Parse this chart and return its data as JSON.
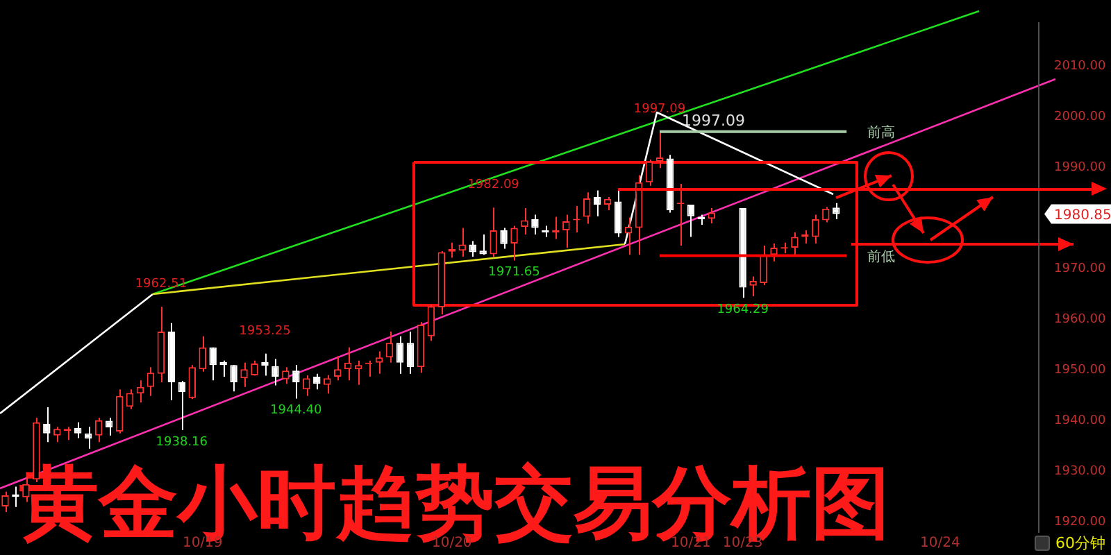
{
  "chart_data": {
    "type": "candlestick",
    "title": "黄金小时趋势交易分析图",
    "categories": [
      null,
      null,
      null,
      null,
      null,
      null,
      null,
      null,
      null,
      null,
      null,
      null,
      null,
      null,
      null,
      null,
      null,
      null,
      null,
      "10/19",
      null,
      null,
      null,
      null,
      null,
      null,
      null,
      null,
      null,
      null,
      null,
      null,
      null,
      null,
      null,
      null,
      null,
      null,
      null,
      null,
      null,
      null,
      null,
      "10/20",
      null,
      null,
      null,
      null,
      null,
      null,
      null,
      null,
      null,
      null,
      null,
      null,
      null,
      null,
      null,
      null,
      null,
      null,
      null,
      null,
      null,
      null,
      "10/21",
      null,
      null,
      null,
      null,
      "10/23",
      null,
      null,
      null,
      null,
      null,
      null,
      null,
      null,
      null,
      null,
      null,
      null,
      null,
      null,
      null,
      null,
      null,
      null,
      "10/24",
      null,
      null,
      null,
      null,
      null,
      null,
      null,
      null,
      null
    ],
    "ohlc": [
      [
        1923.1,
        1926,
        1922,
        1925.3
      ],
      [
        1925.5,
        1927,
        1923,
        1925
      ],
      [
        1924.9,
        1929,
        1924,
        1927.5
      ],
      [
        1928.4,
        1940.6,
        1927.9,
        1939.7
      ],
      [
        1939.4,
        1942.7,
        1935.8,
        1937.5
      ],
      [
        1937.1,
        1938.8,
        1935.8,
        1938.4
      ],
      [
        1938,
        1938.8,
        1936.2,
        1938.4
      ],
      [
        1938.6,
        1939.7,
        1936.6,
        1937.5
      ],
      [
        1937.5,
        1938.8,
        1934.5,
        1936.5
      ],
      [
        1937.1,
        1940.6,
        1935.8,
        1940.1
      ],
      [
        1940,
        1940.6,
        1937.1,
        1938.7
      ],
      [
        1937.9,
        1946.2,
        1937.5,
        1944.9
      ],
      [
        1942.8,
        1946.2,
        1942.3,
        1945.5
      ],
      [
        1945.4,
        1948,
        1943.6,
        1946.7
      ],
      [
        1946.7,
        1950.6,
        1944.9,
        1949.5
      ],
      [
        1949.3,
        1962.51,
        1947.6,
        1957.6
      ],
      [
        1957.6,
        1959.3,
        1944.1,
        1947.6
      ],
      [
        1947.6,
        1947.9,
        1938.16,
        1945.7
      ],
      [
        1944.5,
        1951,
        1944.3,
        1950.6
      ],
      [
        1950.2,
        1956.7,
        1949.7,
        1954.5
      ],
      [
        1954.5,
        1954.5,
        1948,
        1951
      ],
      [
        1951.6,
        1951.9,
        1948.7,
        1951
      ],
      [
        1951,
        1951,
        1945.8,
        1947.6
      ],
      [
        1948.4,
        1951.5,
        1946.7,
        1950.2
      ],
      [
        1949,
        1951.9,
        1948.9,
        1951.3
      ],
      [
        1951.6,
        1953.25,
        1948.9,
        1950.9
      ],
      [
        1950.8,
        1952.2,
        1947,
        1948.7
      ],
      [
        1948.2,
        1950.6,
        1947.3,
        1949.9
      ],
      [
        1949.9,
        1951,
        1944.4,
        1947.6
      ],
      [
        1946.2,
        1949,
        1944.9,
        1948.4
      ],
      [
        1948.7,
        1949.3,
        1946.2,
        1947.3
      ],
      [
        1947.1,
        1949,
        1945.4,
        1948.4
      ],
      [
        1948.7,
        1952.8,
        1948,
        1950.2
      ],
      [
        1950.2,
        1954.5,
        1948,
        1951.5
      ],
      [
        1950.2,
        1951.9,
        1947.1,
        1951
      ],
      [
        1951.2,
        1951.9,
        1948.7,
        1951.5
      ],
      [
        1951.5,
        1953.7,
        1949.3,
        1952.5
      ],
      [
        1952.5,
        1957.6,
        1951.5,
        1955.4
      ],
      [
        1955.4,
        1956.7,
        1949.3,
        1951.5
      ],
      [
        1955.4,
        1957.6,
        1949.3,
        1950.6
      ],
      [
        1950.6,
        1959.5,
        1949.5,
        1959
      ],
      [
        1956.7,
        1963,
        1955.8,
        1962.6
      ],
      [
        1962.4,
        1973.5,
        1961,
        1973.3
      ],
      [
        1973.4,
        1975.2,
        1972.2,
        1973.9
      ],
      [
        1973.6,
        1978.1,
        1972.4,
        1974.8
      ],
      [
        1974.8,
        1975.5,
        1972.4,
        1973.3
      ],
      [
        1973.6,
        1976.8,
        1972.8,
        1972.9
      ],
      [
        1972.9,
        1982.09,
        1972.4,
        1977.6
      ],
      [
        1977.6,
        1978.1,
        1974,
        1974.9
      ],
      [
        1975,
        1978.5,
        1971.65,
        1978.1
      ],
      [
        1978.3,
        1982,
        1976.8,
        1979.6
      ],
      [
        1979.8,
        1980.7,
        1976.8,
        1978.1
      ],
      [
        1977.6,
        1978.5,
        1976.3,
        1977.2
      ],
      [
        1977.2,
        1980.3,
        1975.9,
        1977.6
      ],
      [
        1977.6,
        1980.7,
        1974.2,
        1979.4
      ],
      [
        1979.6,
        1982.4,
        1977.2,
        1979.8
      ],
      [
        1980.3,
        1985.1,
        1978.9,
        1983.9
      ],
      [
        1984.2,
        1985.5,
        1980.4,
        1982.7
      ],
      [
        1982.7,
        1984.2,
        1981.6,
        1983.8
      ],
      [
        1983.3,
        1985.5,
        1976.3,
        1977
      ],
      [
        1977,
        1980.1,
        1972.8,
        1978.3
      ],
      [
        1978.1,
        1988.5,
        1972.8,
        1987.1
      ],
      [
        1987.1,
        1991.6,
        1986.4,
        1991.2
      ],
      [
        1991.2,
        1997.09,
        1989.9,
        1992
      ],
      [
        1991.8,
        1992.5,
        1981.1,
        1981.6
      ],
      [
        1982.8,
        1986.8,
        1974.6,
        1982.9
      ],
      [
        1982.7,
        1982.7,
        1976.3,
        1980.4
      ],
      [
        1980.3,
        1980.7,
        1978.7,
        1979.8
      ],
      [
        1979.9,
        1982,
        1979,
        1981.1
      ],
      null,
      null,
      [
        1982,
        1982,
        1964.29,
        1966.3
      ],
      [
        1966.7,
        1968.5,
        1964.6,
        1967.6
      ],
      [
        1967.2,
        1974.6,
        1966.8,
        1972.8
      ],
      [
        1972.8,
        1975,
        1971.5,
        1974.2
      ],
      [
        1974,
        1975.2,
        1973.1,
        1974.3
      ],
      [
        1974.2,
        1977.2,
        1972.8,
        1976.3
      ],
      [
        1976.3,
        1977.6,
        1975,
        1976.8
      ],
      [
        1976.3,
        1980.7,
        1975,
        1979.8
      ],
      [
        1979.6,
        1982.2,
        1979.2,
        1981.9
      ],
      [
        1982.1,
        1983,
        1979.8,
        1980.85
      ],
      null,
      null,
      null,
      null,
      null,
      null,
      null,
      null,
      null,
      null,
      null,
      null,
      null,
      null,
      null,
      null,
      null,
      null,
      null
    ],
    "ylim": [
      1918,
      2018.6
    ],
    "yticks": [
      {
        "value": 1920,
        "label": "1920.00"
      },
      {
        "value": 1930,
        "label": "1930.00"
      },
      {
        "value": 1940,
        "label": "1940.00"
      },
      {
        "value": 1950,
        "label": "1950.00"
      },
      {
        "value": 1960,
        "label": "1960.00"
      },
      {
        "value": 1970,
        "label": "1970.00"
      },
      {
        "value": 1990,
        "label": "1990.00"
      },
      {
        "value": 2000,
        "label": "2000.00"
      },
      {
        "value": 2010,
        "label": "2010.00"
      }
    ],
    "ref_lines": [
      {
        "axis": "y",
        "value": 1997.09,
        "label": "前高",
        "color": "#a8cca8"
      },
      {
        "axis": "y",
        "value": 1972.6,
        "label": "前低",
        "color": "#ff0000"
      },
      {
        "axis": "y",
        "value": 1985.7,
        "color": "#ff1010"
      }
    ],
    "annotations": [
      {
        "text": "1962.51",
        "y": 1962.51
      },
      {
        "text": "1953.25",
        "y": 1953.25
      },
      {
        "text": "1944.40",
        "y": 1944.4
      },
      {
        "text": "1938.16",
        "y": 1938.16
      },
      {
        "text": "1982.09",
        "y": 1982.09
      },
      {
        "text": "1971.65",
        "y": 1971.65
      },
      {
        "text": "1997.09",
        "y": 1997.09
      },
      {
        "text": "1997.09",
        "y": 1997.09
      },
      {
        "text": "1964.29",
        "y": 1964.29
      },
      "1980.85",
      "60分钟"
    ],
    "grid": false,
    "legend": false
  }
}
